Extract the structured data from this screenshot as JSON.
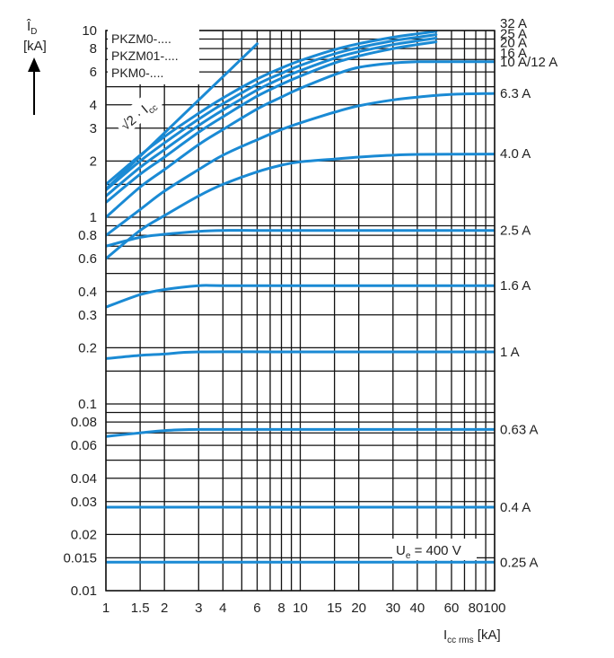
{
  "chart_data": {
    "type": "line",
    "x_scale": "log",
    "y_scale": "log",
    "xlim": [
      1,
      100
    ],
    "ylim": [
      0.01,
      10
    ],
    "grid": true,
    "x_ticks": [
      {
        "v": 1,
        "label": "1"
      },
      {
        "v": 1.5,
        "label": "1.5"
      },
      {
        "v": 2,
        "label": "2"
      },
      {
        "v": 3,
        "label": "3"
      },
      {
        "v": 4,
        "label": "4"
      },
      {
        "v": 6,
        "label": "6"
      },
      {
        "v": 8,
        "label": "8"
      },
      {
        "v": 10,
        "label": "10"
      },
      {
        "v": 15,
        "label": "15"
      },
      {
        "v": 20,
        "label": "20"
      },
      {
        "v": 30,
        "label": "30"
      },
      {
        "v": 40,
        "label": "40"
      },
      {
        "v": 60,
        "label": "60"
      },
      {
        "v": 80,
        "label": "80"
      },
      {
        "v": 100,
        "label": "100"
      }
    ],
    "y_ticks": [
      {
        "v": 10,
        "label": "10"
      },
      {
        "v": 8,
        "label": "8"
      },
      {
        "v": 6,
        "label": "6"
      },
      {
        "v": 4,
        "label": "4"
      },
      {
        "v": 3,
        "label": "3"
      },
      {
        "v": 2,
        "label": "2"
      },
      {
        "v": 1,
        "label": "1"
      },
      {
        "v": 0.8,
        "label": "0.8"
      },
      {
        "v": 0.6,
        "label": "0.6"
      },
      {
        "v": 0.4,
        "label": "0.4"
      },
      {
        "v": 0.3,
        "label": "0.3"
      },
      {
        "v": 0.2,
        "label": "0.2"
      },
      {
        "v": 0.1,
        "label": "0.1"
      },
      {
        "v": 0.08,
        "label": "0.08"
      },
      {
        "v": 0.06,
        "label": "0.06"
      },
      {
        "v": 0.04,
        "label": "0.04"
      },
      {
        "v": 0.03,
        "label": "0.03"
      },
      {
        "v": 0.02,
        "label": "0.02"
      },
      {
        "v": 0.015,
        "label": "0.015"
      },
      {
        "v": 0.01,
        "label": "0.01"
      }
    ],
    "x_grid": [
      1,
      1.5,
      2,
      3,
      4,
      5,
      6,
      7,
      8,
      9,
      10,
      15,
      20,
      30,
      40,
      50,
      60,
      70,
      80,
      90,
      100
    ],
    "y_grid": [
      0.01,
      0.015,
      0.02,
      0.03,
      0.04,
      0.05,
      0.06,
      0.07,
      0.08,
      0.09,
      0.1,
      0.15,
      0.2,
      0.3,
      0.4,
      0.5,
      0.6,
      0.7,
      0.8,
      0.9,
      1,
      1.5,
      2,
      3,
      4,
      5,
      6,
      7,
      8,
      9,
      10
    ],
    "y_label": {
      "main": "Î",
      "sub": "D",
      "unit": "[kA]"
    },
    "x_label": {
      "main": "I",
      "sub": "cc rms",
      "unit": " [kA]"
    },
    "legend": [
      "PKZM0-....",
      "PKZM01-....",
      "PKM0-...."
    ],
    "peak_label": {
      "main": "√2 · I",
      "sub": "cc"
    },
    "annotation": {
      "main": "U",
      "sub": "e",
      "rest": " = 400 V"
    },
    "line_color": "#1a8ad4",
    "series": [
      {
        "name": "32 A",
        "label_y": 10.9,
        "x": [
          1,
          1.5,
          2,
          3,
          4,
          6,
          8,
          10,
          15,
          20,
          30,
          40,
          50
        ],
        "y": [
          1.5,
          2.15,
          2.7,
          3.6,
          4.35,
          5.5,
          6.3,
          6.9,
          7.9,
          8.5,
          9.2,
          9.6,
          9.9
        ]
      },
      {
        "name": "25 A",
        "label_y": 9.6,
        "x": [
          1,
          1.5,
          2,
          3,
          4,
          6,
          8,
          10,
          15,
          20,
          30,
          40,
          50
        ],
        "y": [
          1.4,
          2.0,
          2.5,
          3.35,
          4.05,
          5.15,
          5.9,
          6.5,
          7.5,
          8.1,
          8.8,
          9.2,
          9.5
        ]
      },
      {
        "name": "20 A",
        "label_y": 8.6,
        "x": [
          1,
          1.5,
          2,
          3,
          4,
          6,
          8,
          10,
          15,
          20,
          30,
          40,
          50
        ],
        "y": [
          1.3,
          1.85,
          2.3,
          3.1,
          3.75,
          4.8,
          5.55,
          6.1,
          7.1,
          7.7,
          8.4,
          8.8,
          9.1
        ]
      },
      {
        "name": "16 A",
        "label_y": 7.6,
        "x": [
          1,
          1.5,
          2,
          3,
          4,
          6,
          8,
          10,
          15,
          20,
          30,
          40,
          50
        ],
        "y": [
          1.2,
          1.7,
          2.1,
          2.85,
          3.45,
          4.45,
          5.15,
          5.7,
          6.7,
          7.3,
          8.0,
          8.4,
          8.7
        ]
      },
      {
        "name": "10 A/12 A",
        "label_y": 6.8,
        "x": [
          1,
          1.5,
          2,
          3,
          4,
          6,
          8,
          10,
          15,
          20,
          30,
          40,
          50,
          100
        ],
        "y": [
          1.0,
          1.45,
          1.8,
          2.45,
          2.95,
          3.8,
          4.4,
          4.9,
          5.8,
          6.35,
          6.7,
          6.8,
          6.8,
          6.8
        ]
      },
      {
        "name": "6.3 A",
        "label_y": 4.6,
        "x": [
          1,
          1.5,
          2,
          3,
          4,
          6,
          8,
          10,
          15,
          20,
          30,
          40,
          60,
          100
        ],
        "y": [
          0.8,
          1.1,
          1.38,
          1.8,
          2.15,
          2.6,
          2.95,
          3.2,
          3.65,
          3.95,
          4.25,
          4.4,
          4.55,
          4.6
        ]
      },
      {
        "name": "4.0 A",
        "label_y": 2.2,
        "x": [
          1,
          1.5,
          2,
          3,
          4,
          6,
          8,
          10,
          15,
          20,
          30,
          40,
          100
        ],
        "y": [
          0.6,
          0.85,
          1.02,
          1.3,
          1.5,
          1.75,
          1.9,
          1.98,
          2.05,
          2.1,
          2.15,
          2.17,
          2.18
        ]
      },
      {
        "name": "2.5 A",
        "label_y": 0.85,
        "x": [
          1,
          1.5,
          2,
          3,
          4,
          6,
          10,
          100
        ],
        "y": [
          0.7,
          0.78,
          0.81,
          0.84,
          0.85,
          0.85,
          0.85,
          0.85
        ]
      },
      {
        "name": "1.6 A",
        "label_y": 0.43,
        "x": [
          1,
          1.5,
          2,
          3,
          4,
          10,
          100
        ],
        "y": [
          0.33,
          0.385,
          0.41,
          0.43,
          0.43,
          0.43,
          0.43
        ]
      },
      {
        "name": "1 A",
        "label_y": 0.19,
        "x": [
          1,
          1.5,
          2,
          3,
          10,
          100
        ],
        "y": [
          0.175,
          0.182,
          0.185,
          0.19,
          0.19,
          0.19
        ]
      },
      {
        "name": "0.63 A",
        "label_y": 0.073,
        "x": [
          1,
          1.5,
          2,
          3,
          10,
          100
        ],
        "y": [
          0.067,
          0.07,
          0.072,
          0.073,
          0.073,
          0.073
        ]
      },
      {
        "name": "0.4 A",
        "label_y": 0.028,
        "x": [
          1,
          100
        ],
        "y": [
          0.028,
          0.028
        ]
      },
      {
        "name": "0.25 A",
        "label_y": 0.0142,
        "x": [
          1,
          100
        ],
        "y": [
          0.0142,
          0.0142
        ]
      }
    ],
    "peak_line": {
      "x": [
        1,
        6
      ],
      "y": [
        1.414,
        8.485
      ]
    }
  }
}
